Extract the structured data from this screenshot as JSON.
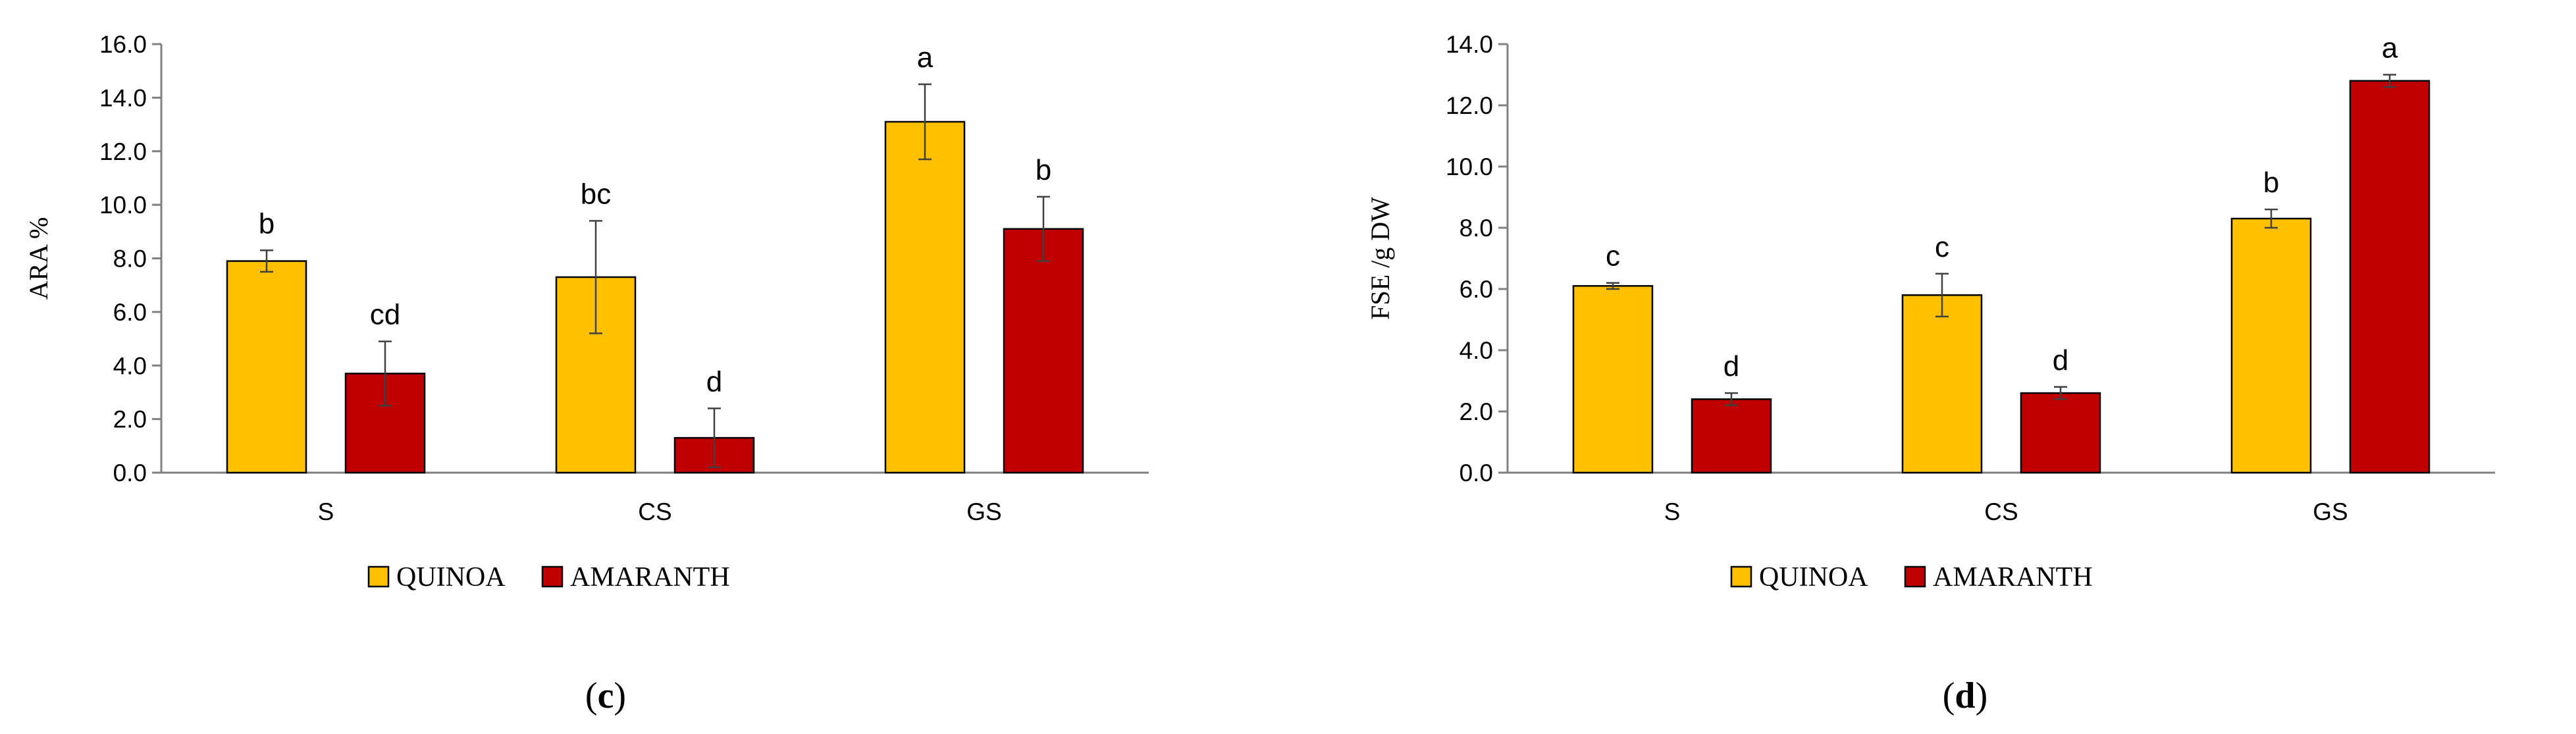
{
  "colors": {
    "quinoa": "#FFC000",
    "amaranth": "#C00000",
    "axis": "#808080",
    "bar_edge": "#000000",
    "error_bar": "#404040",
    "text": "#000000"
  },
  "chart_data": [
    {
      "panel_label": "c",
      "type": "bar",
      "title": "",
      "xlabel": "",
      "ylabel": "ARA %",
      "ylim": [
        0,
        16
      ],
      "yticks": [
        "0.0",
        "2.0",
        "4.0",
        "6.0",
        "8.0",
        "10.0",
        "12.0",
        "14.0",
        "16.0"
      ],
      "categories": [
        "S",
        "CS",
        "GS"
      ],
      "grid": false,
      "legend_position": "bottom-center",
      "series": [
        {
          "name": "QUINOA",
          "color_key": "quinoa",
          "values": [
            7.9,
            7.3,
            13.1
          ],
          "errors": [
            0.4,
            2.1,
            1.4
          ],
          "letters": [
            "b",
            "bc",
            "a"
          ]
        },
        {
          "name": "AMARANTH",
          "color_key": "amaranth",
          "values": [
            3.7,
            1.3,
            9.1
          ],
          "errors": [
            1.2,
            1.1,
            1.2
          ],
          "letters": [
            "cd",
            "d",
            "b"
          ]
        }
      ]
    },
    {
      "panel_label": "d",
      "type": "bar",
      "title": "",
      "xlabel": "",
      "ylabel": "FSE /g DW",
      "ylim": [
        0,
        14
      ],
      "yticks": [
        "0.0",
        "2.0",
        "4.0",
        "6.0",
        "8.0",
        "10.0",
        "12.0",
        "14.0"
      ],
      "categories": [
        "S",
        "CS",
        "GS"
      ],
      "grid": false,
      "legend_position": "bottom-center",
      "series": [
        {
          "name": "QUINOA",
          "color_key": "quinoa",
          "values": [
            6.1,
            5.8,
            8.3
          ],
          "errors": [
            0.1,
            0.7,
            0.3
          ],
          "letters": [
            "c",
            "c",
            "b"
          ]
        },
        {
          "name": "AMARANTH",
          "color_key": "amaranth",
          "values": [
            2.4,
            2.6,
            12.8
          ],
          "errors": [
            0.2,
            0.2,
            0.2
          ],
          "letters": [
            "d",
            "d",
            "a"
          ]
        }
      ]
    }
  ]
}
